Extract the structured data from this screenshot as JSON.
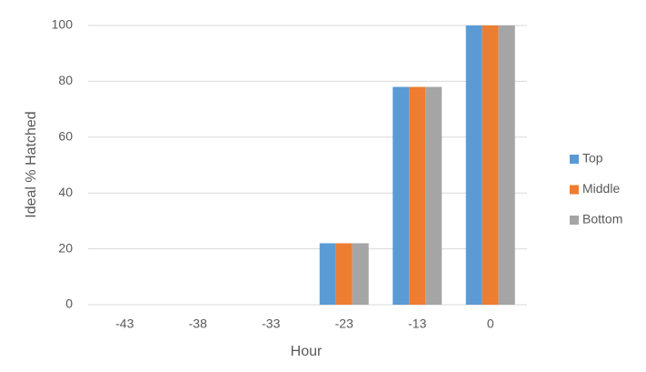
{
  "chart_data": {
    "type": "bar",
    "x_label": "Hour",
    "y_label": "Ideal % Hatched",
    "categories": [
      "-43",
      "-38",
      "-33",
      "-23",
      "-13",
      "0"
    ],
    "series": [
      {
        "name": "Top",
        "color": "#5b9bd5",
        "values": [
          0,
          0,
          0,
          22,
          78,
          100
        ]
      },
      {
        "name": "Middle",
        "color": "#ed7d31",
        "values": [
          0,
          0,
          0,
          22,
          78,
          100
        ]
      },
      {
        "name": "Bottom",
        "color": "#a5a5a5",
        "values": [
          0,
          0,
          0,
          22,
          78,
          100
        ]
      }
    ],
    "ylim": [
      0,
      100
    ],
    "yticks": [
      0,
      20,
      40,
      60,
      80,
      100
    ],
    "grid": true,
    "legend": "right"
  }
}
